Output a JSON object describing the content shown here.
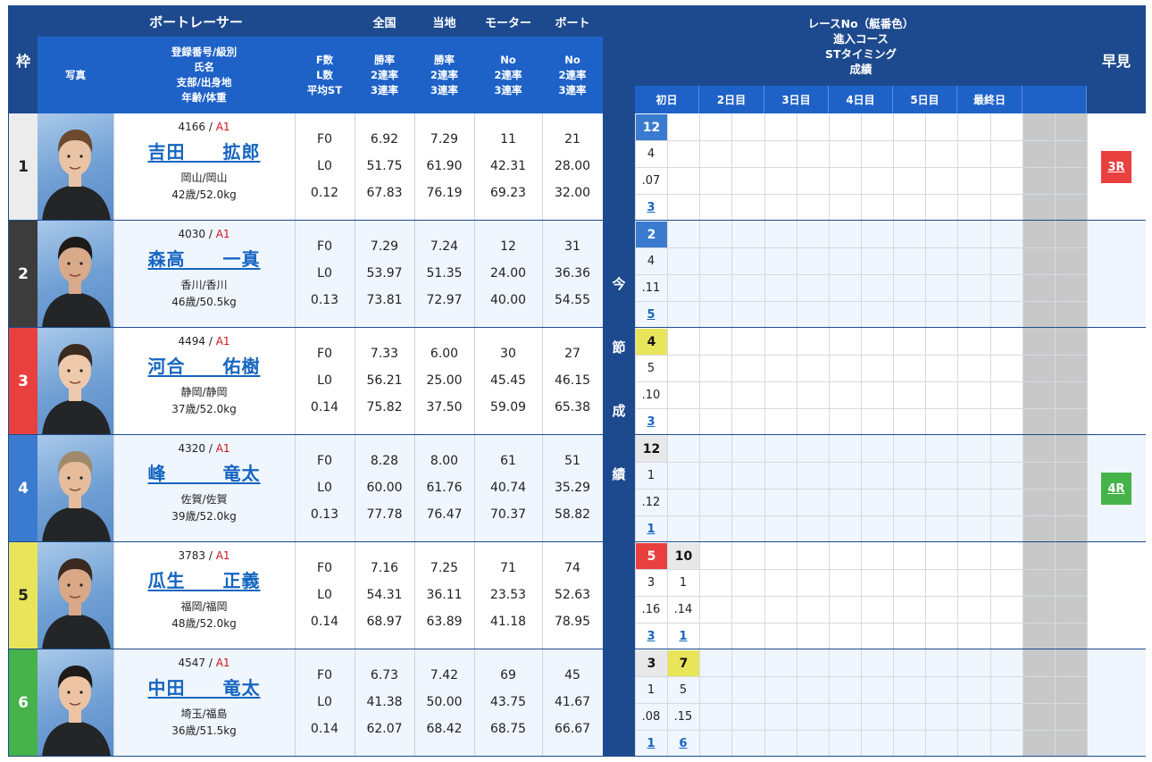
{
  "header": {
    "waku": "枠",
    "racer_group": "ボートレーサー",
    "photo": "写真",
    "info_lines": [
      "登録番号/級別",
      "氏名",
      "支部/出身地",
      "年齢/体重"
    ],
    "fl_lines": [
      "F数",
      "L数",
      "平均ST"
    ],
    "national": "全国",
    "local": "当地",
    "motor": "モーター",
    "boat": "ボート",
    "national_sub": [
      "勝率",
      "2連率",
      "3連率"
    ],
    "local_sub": [
      "勝率",
      "2連率",
      "3連率"
    ],
    "motor_sub": [
      "No",
      "2連率",
      "3連率"
    ],
    "boat_sub": [
      "No",
      "2連率",
      "3連率"
    ],
    "race_group_lines": [
      "レースNo（艇番色）",
      "進入コース",
      "STタイミング",
      "成績"
    ],
    "days": [
      "初日",
      "2日目",
      "3日目",
      "4日目",
      "5日目",
      "最終日",
      ""
    ],
    "early": "早見",
    "vertical_label": [
      "今",
      "節",
      "成",
      "績"
    ]
  },
  "colors": {
    "header_dark": "#1d4a8e",
    "header_blue": "#1e62c8",
    "waku1": "#ececec",
    "waku2": "#3c3c3c",
    "waku3": "#e8403f",
    "waku4": "#3a7bd0",
    "waku5": "#e9e55a",
    "waku6": "#46b34a",
    "link": "#1565c0",
    "class_red": "#d0121b",
    "gray_col": "#c8c8c8"
  },
  "racers": [
    {
      "waku": "1",
      "reg": "4166",
      "class": "A1",
      "name": "吉田　　拡郎",
      "branch": "岡山/岡山",
      "age_weight": "42歳/52.0kg",
      "f": "F0",
      "l": "L0",
      "st": "0.12",
      "national": [
        "6.92",
        "51.75",
        "67.83"
      ],
      "local": [
        "7.29",
        "61.90",
        "76.19"
      ],
      "motor": [
        "11",
        "42.31",
        "69.23"
      ],
      "boat": [
        "21",
        "28.00",
        "32.00"
      ],
      "races": [
        {
          "race": "12",
          "color": "4",
          "course": "4",
          "st": ".07",
          "result": "3"
        }
      ],
      "early": "3R",
      "early_color": "#e8403f"
    },
    {
      "waku": "2",
      "reg": "4030",
      "class": "A1",
      "name": "森高　　一真",
      "branch": "香川/香川",
      "age_weight": "46歳/50.5kg",
      "f": "F0",
      "l": "L0",
      "st": "0.13",
      "national": [
        "7.29",
        "53.97",
        "73.81"
      ],
      "local": [
        "7.24",
        "51.35",
        "72.97"
      ],
      "motor": [
        "12",
        "24.00",
        "40.00"
      ],
      "boat": [
        "31",
        "36.36",
        "54.55"
      ],
      "races": [
        {
          "race": "2",
          "color": "4",
          "course": "4",
          "st": ".11",
          "result": "5"
        }
      ],
      "early": "",
      "early_color": ""
    },
    {
      "waku": "3",
      "reg": "4494",
      "class": "A1",
      "name": "河合　　佑樹",
      "branch": "静岡/静岡",
      "age_weight": "37歳/52.0kg",
      "f": "F0",
      "l": "L0",
      "st": "0.14",
      "national": [
        "7.33",
        "56.21",
        "75.82"
      ],
      "local": [
        "6.00",
        "25.00",
        "37.50"
      ],
      "motor": [
        "30",
        "45.45",
        "59.09"
      ],
      "boat": [
        "27",
        "46.15",
        "65.38"
      ],
      "races": [
        {
          "race": "4",
          "color": "5",
          "course": "5",
          "st": ".10",
          "result": "3"
        }
      ],
      "early": "",
      "early_color": ""
    },
    {
      "waku": "4",
      "reg": "4320",
      "class": "A1",
      "name": "峰　　　竜太",
      "branch": "佐賀/佐賀",
      "age_weight": "39歳/52.0kg",
      "f": "F0",
      "l": "L0",
      "st": "0.13",
      "national": [
        "8.28",
        "60.00",
        "77.78"
      ],
      "local": [
        "8.00",
        "61.76",
        "76.47"
      ],
      "motor": [
        "61",
        "40.74",
        "70.37"
      ],
      "boat": [
        "51",
        "35.29",
        "58.82"
      ],
      "races": [
        {
          "race": "12",
          "color": "1",
          "course": "1",
          "st": ".12",
          "result": "1"
        }
      ],
      "early": "4R",
      "early_color": "#46b34a"
    },
    {
      "waku": "5",
      "reg": "3783",
      "class": "A1",
      "name": "瓜生　　正義",
      "branch": "福岡/福岡",
      "age_weight": "48歳/52.0kg",
      "f": "F0",
      "l": "L0",
      "st": "0.14",
      "national": [
        "7.16",
        "54.31",
        "68.97"
      ],
      "local": [
        "7.25",
        "36.11",
        "63.89"
      ],
      "motor": [
        "71",
        "23.53",
        "41.18"
      ],
      "boat": [
        "74",
        "52.63",
        "78.95"
      ],
      "races": [
        {
          "race": "5",
          "color": "3",
          "course": "3",
          "st": ".16",
          "result": "3"
        },
        {
          "race": "10",
          "color": "1",
          "course": "1",
          "st": ".14",
          "result": "1"
        }
      ],
      "early": "",
      "early_color": ""
    },
    {
      "waku": "6",
      "reg": "4547",
      "class": "A1",
      "name": "中田　　竜太",
      "branch": "埼玉/福島",
      "age_weight": "36歳/51.5kg",
      "f": "F0",
      "l": "L0",
      "st": "0.14",
      "national": [
        "6.73",
        "41.38",
        "62.07"
      ],
      "local": [
        "7.42",
        "50.00",
        "68.42"
      ],
      "motor": [
        "69",
        "43.75",
        "68.75"
      ],
      "boat": [
        "45",
        "41.67",
        "66.67"
      ],
      "races": [
        {
          "race": "3",
          "color": "1",
          "course": "1",
          "st": ".08",
          "result": "1"
        },
        {
          "race": "7",
          "color": "5",
          "course": "5",
          "st": ".15",
          "result": "6"
        }
      ],
      "early": "",
      "early_color": ""
    }
  ]
}
